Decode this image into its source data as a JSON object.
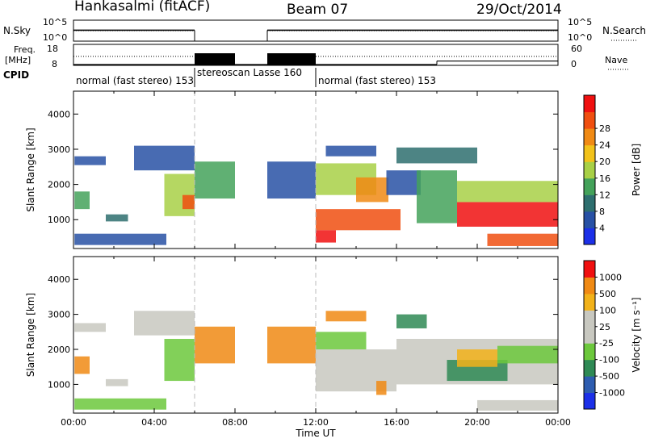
{
  "header": {
    "station": "Hankasalmi (fitACF)",
    "beam": "Beam 07",
    "date": "29/Oct/2014"
  },
  "chart_data": [
    {
      "type": "line",
      "panel": "noise",
      "left_label": "N.Sky",
      "right_label": "N.Search",
      "left_ticks": [
        "10^5",
        "10^0"
      ],
      "right_ticks": [
        "10^5",
        "10^0"
      ],
      "y_scale": "log",
      "series": [
        {
          "name": "N.Sky",
          "style": "solid",
          "segments": [
            [
              0.0,
              6.0,
              2.6
            ],
            [
              9.6,
              24.0,
              2.6
            ]
          ]
        },
        {
          "name": "N.Search",
          "style": "dotted",
          "segments": [
            [
              0.0,
              6.0,
              2.5
            ],
            [
              9.6,
              24.0,
              2.5
            ]
          ]
        }
      ]
    },
    {
      "type": "line",
      "panel": "frequency",
      "left_label": "Freq.\n[MHz]",
      "right_label": "Nave",
      "left_ticks": [
        "18",
        "8"
      ],
      "right_ticks": [
        "60",
        "0"
      ],
      "frequency_segments": [
        [
          0.0,
          6.0,
          12.3
        ],
        [
          6.0,
          8.0,
          12.3
        ],
        [
          9.6,
          12.0,
          12.3
        ],
        [
          12.0,
          24.0,
          12.3
        ]
      ],
      "nave_segments": [
        [
          0.0,
          18.0,
          0
        ],
        [
          18.0,
          24.0,
          10
        ]
      ],
      "stereo_blocks": [
        [
          6.0,
          8.0
        ],
        [
          9.6,
          12.0
        ]
      ]
    },
    {
      "type": "table",
      "panel": "cpid",
      "label": "CPID",
      "entries": [
        {
          "start": 0.0,
          "end": 6.0,
          "text": "normal (fast stereo) 153"
        },
        {
          "start": 6.0,
          "end": 12.0,
          "text": "stereoscan Lasse 160"
        },
        {
          "start": 12.0,
          "end": 24.0,
          "text": "normal (fast stereo) 153"
        }
      ]
    },
    {
      "type": "heatmap",
      "panel": "power",
      "ylabel": "Slant Range [km]",
      "yticks": [
        1000,
        2000,
        3000,
        4000
      ],
      "ylim": [
        180,
        4650
      ],
      "xlim": [
        0,
        24
      ],
      "colorbar": {
        "label": "Power [dB]",
        "ticks": [
          "4",
          "8",
          "12",
          "16",
          "20",
          "24",
          "28"
        ],
        "colors": [
          "#1c30e8",
          "#2851a5",
          "#2e6f6f",
          "#44a25a",
          "#a8d046",
          "#f2c21a",
          "#f08a14",
          "#f04f10",
          "#f01010"
        ]
      },
      "regions": [
        {
          "t0": 0.05,
          "t1": 1.6,
          "r0": 2550,
          "r1": 2800,
          "lvl": 1
        },
        {
          "t0": 0.05,
          "t1": 0.8,
          "r0": 1300,
          "r1": 1800,
          "lvl": 3
        },
        {
          "t0": 1.6,
          "t1": 2.7,
          "r0": 950,
          "r1": 1150,
          "lvl": 2
        },
        {
          "t0": 0.05,
          "t1": 4.6,
          "r0": 280,
          "r1": 600,
          "lvl": 1
        },
        {
          "t0": 3.0,
          "t1": 6.0,
          "r0": 2400,
          "r1": 3100,
          "lvl": 1
        },
        {
          "t0": 4.5,
          "t1": 6.0,
          "r0": 1100,
          "r1": 2300,
          "lvl": 4
        },
        {
          "t0": 5.4,
          "t1": 6.0,
          "r0": 1300,
          "r1": 1700,
          "lvl": 7
        },
        {
          "t0": 6.0,
          "t1": 8.0,
          "r0": 1600,
          "r1": 2650,
          "lvl": 3
        },
        {
          "t0": 9.6,
          "t1": 12.0,
          "r0": 1600,
          "r1": 2650,
          "lvl": 1
        },
        {
          "t0": 12.0,
          "t1": 15.0,
          "r0": 1700,
          "r1": 2600,
          "lvl": 4
        },
        {
          "t0": 12.0,
          "t1": 16.2,
          "r0": 700,
          "r1": 1300,
          "lvl": 7
        },
        {
          "t0": 12.0,
          "t1": 13.0,
          "r0": 350,
          "r1": 700,
          "lvl": 8
        },
        {
          "t0": 14.0,
          "t1": 15.6,
          "r0": 1500,
          "r1": 2200,
          "lvl": 6
        },
        {
          "t0": 15.5,
          "t1": 17.2,
          "r0": 1700,
          "r1": 2400,
          "lvl": 1
        },
        {
          "t0": 17.0,
          "t1": 19.0,
          "r0": 900,
          "r1": 2400,
          "lvl": 3
        },
        {
          "t0": 19.0,
          "t1": 24.0,
          "r0": 800,
          "r1": 1500,
          "lvl": 8
        },
        {
          "t0": 19.0,
          "t1": 24.0,
          "r0": 1500,
          "r1": 2100,
          "lvl": 4
        },
        {
          "t0": 20.5,
          "t1": 24.0,
          "r0": 250,
          "r1": 600,
          "lvl": 7
        },
        {
          "t0": 16.0,
          "t1": 20.0,
          "r0": 2600,
          "r1": 3050,
          "lvl": 2
        },
        {
          "t0": 12.5,
          "t1": 15.0,
          "r0": 2800,
          "r1": 3100,
          "lvl": 1
        }
      ]
    },
    {
      "type": "heatmap",
      "panel": "velocity",
      "ylabel": "Slant Range [km]",
      "yticks": [
        1000,
        2000,
        3000,
        4000
      ],
      "ylim": [
        180,
        4650
      ],
      "xlim": [
        0,
        24
      ],
      "xticks": [
        "00:00",
        "04:00",
        "08:00",
        "12:00",
        "16:00",
        "20:00",
        "00:00"
      ],
      "xlabel": "Time UT",
      "colorbar": {
        "label": "Velocity [m s^-1]",
        "ticks": [
          "1000",
          "500",
          "100",
          "25",
          "-25",
          "-100",
          "-500",
          "-1000"
        ],
        "colors": [
          "#1c30e8",
          "#2e5db0",
          "#2f8a55",
          "#6cc83c",
          "#c8c8c0",
          "#c8c8c0",
          "#f2b21a",
          "#f08a14",
          "#f01010"
        ]
      },
      "regions": [
        {
          "t0": 0.05,
          "t1": 1.6,
          "r0": 2500,
          "r1": 2750,
          "lvl": 4
        },
        {
          "t0": 0.05,
          "t1": 0.8,
          "r0": 1300,
          "r1": 1800,
          "lvl": 7
        },
        {
          "t0": 1.6,
          "t1": 2.7,
          "r0": 950,
          "r1": 1150,
          "lvl": 4
        },
        {
          "t0": 0.05,
          "t1": 4.6,
          "r0": 280,
          "r1": 600,
          "lvl": 3
        },
        {
          "t0": 3.0,
          "t1": 6.0,
          "r0": 2400,
          "r1": 3100,
          "lvl": 4
        },
        {
          "t0": 4.5,
          "t1": 6.0,
          "r0": 1100,
          "r1": 2300,
          "lvl": 3
        },
        {
          "t0": 6.0,
          "t1": 8.0,
          "r0": 1600,
          "r1": 2650,
          "lvl": 7
        },
        {
          "t0": 9.6,
          "t1": 12.0,
          "r0": 1600,
          "r1": 2650,
          "lvl": 7
        },
        {
          "t0": 12.0,
          "t1": 16.0,
          "r0": 800,
          "r1": 2000,
          "lvl": 4
        },
        {
          "t0": 12.0,
          "t1": 14.5,
          "r0": 2000,
          "r1": 2500,
          "lvl": 3
        },
        {
          "t0": 15.0,
          "t1": 15.5,
          "r0": 700,
          "r1": 1100,
          "lvl": 7
        },
        {
          "t0": 16.0,
          "t1": 24.0,
          "r0": 1000,
          "r1": 2300,
          "lvl": 4
        },
        {
          "t0": 18.5,
          "t1": 21.5,
          "r0": 1100,
          "r1": 1700,
          "lvl": 2
        },
        {
          "t0": 19.0,
          "t1": 21.0,
          "r0": 1500,
          "r1": 2000,
          "lvl": 6
        },
        {
          "t0": 21.0,
          "t1": 24.0,
          "r0": 1600,
          "r1": 2100,
          "lvl": 3
        },
        {
          "t0": 20.0,
          "t1": 24.0,
          "r0": 250,
          "r1": 550,
          "lvl": 4
        },
        {
          "t0": 12.5,
          "t1": 14.5,
          "r0": 2800,
          "r1": 3100,
          "lvl": 7
        },
        {
          "t0": 16.0,
          "t1": 17.5,
          "r0": 2600,
          "r1": 3000,
          "lvl": 2
        }
      ]
    }
  ]
}
